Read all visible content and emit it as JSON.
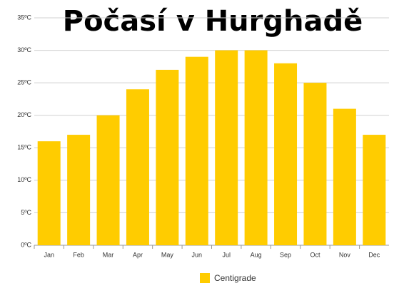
{
  "chart_data": {
    "type": "bar",
    "title": "Počasí v Hurghadě",
    "categories": [
      "Jan",
      "Feb",
      "Mar",
      "Apr",
      "May",
      "Jun",
      "Jul",
      "Aug",
      "Sep",
      "Oct",
      "Nov",
      "Dec"
    ],
    "series": [
      {
        "name": "Centigrade",
        "color": "#ffcc00",
        "values": [
          16,
          17,
          20,
          24,
          27,
          29,
          30,
          30,
          28,
          25,
          21,
          17
        ]
      }
    ],
    "ylim": [
      0,
      35
    ],
    "yticks": [
      {
        "value": 0,
        "label": "0ºC"
      },
      {
        "value": 5,
        "label": "5ºC"
      },
      {
        "value": 10,
        "label": "10ºC"
      },
      {
        "value": 15,
        "label": "15ºC"
      },
      {
        "value": 20,
        "label": "20ºC"
      },
      {
        "value": 25,
        "label": "25ºC"
      },
      {
        "value": 30,
        "label": "30ºC"
      },
      {
        "value": 35,
        "label": "35ºC"
      }
    ],
    "grid": true,
    "legend": "bottom"
  }
}
